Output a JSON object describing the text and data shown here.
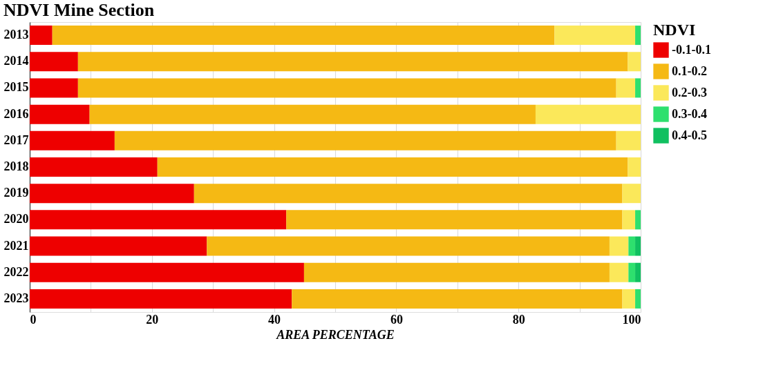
{
  "chart_data": {
    "type": "bar",
    "title": "NDVI Mine Section",
    "xlabel": "AREA PERCENTAGE",
    "legend_title": "NDVI",
    "orientation": "horizontal",
    "stacked": true,
    "categories": [
      "2013",
      "2014",
      "2015",
      "2016",
      "2017",
      "2018",
      "2019",
      "2020",
      "2021",
      "2022",
      "2023"
    ],
    "series": [
      {
        "name": "-0.1-0.1",
        "color": "#ee0000",
        "values": [
          3.7,
          7.9,
          7.9,
          9.8,
          13.9,
          20.9,
          26.9,
          42.0,
          29.0,
          44.9,
          42.9
        ]
      },
      {
        "name": "0.1-0.2",
        "color": "#f5b914",
        "values": [
          82.2,
          90.0,
          88.1,
          73.0,
          82.1,
          77.0,
          70.1,
          55.0,
          65.9,
          50.0,
          54.1
        ]
      },
      {
        "name": "0.2-0.3",
        "color": "#fbe85a",
        "values": [
          13.2,
          2.1,
          3.1,
          17.2,
          4.0,
          2.1,
          3.0,
          2.1,
          3.1,
          3.1,
          2.1
        ]
      },
      {
        "name": "0.3-0.4",
        "color": "#2ee06e",
        "values": [
          0.9,
          0,
          0.9,
          0,
          0,
          0,
          0,
          0.9,
          1.1,
          1.1,
          0.9
        ]
      },
      {
        "name": "0.4-0.5",
        "color": "#10c060",
        "values": [
          0,
          0,
          0,
          0,
          0,
          0,
          0,
          0,
          0.9,
          0.9,
          0
        ]
      }
    ],
    "xlim": [
      0,
      100
    ],
    "xticks": [
      0,
      {
        "value": 10,
        "label": null
      },
      20,
      {
        "value": 30,
        "label": null
      },
      40,
      {
        "value": 50,
        "label": null
      },
      60,
      {
        "value": 70,
        "label": null
      },
      80,
      {
        "value": 90,
        "label": null
      },
      100
    ],
    "grid": "x",
    "legend": "right"
  }
}
